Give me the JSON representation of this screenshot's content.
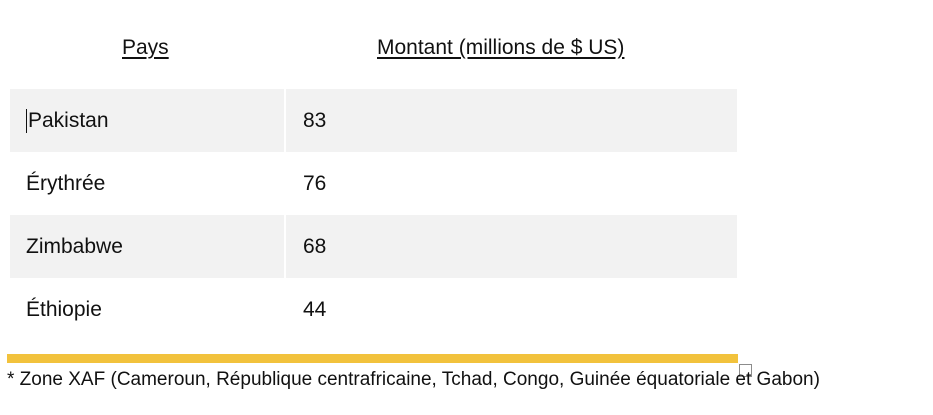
{
  "table": {
    "headers": {
      "country": "Pays",
      "amount": "Montant (millions de $ US)"
    },
    "rows": [
      {
        "country": "Pakistan",
        "amount": "83"
      },
      {
        "country": "Érythrée",
        "amount": "76"
      },
      {
        "country": "Zimbabwe",
        "amount": "68"
      },
      {
        "country": "Éthiopie",
        "amount": "44"
      }
    ]
  },
  "footnote": "* Zone XAF (Cameroun, République centrafricaine, Tchad, Congo, Guinée équatoriale et Gabon)",
  "colors": {
    "row_shade": "#f2f2f2",
    "accent_rule": "#f2c23c",
    "text": "#111111"
  }
}
